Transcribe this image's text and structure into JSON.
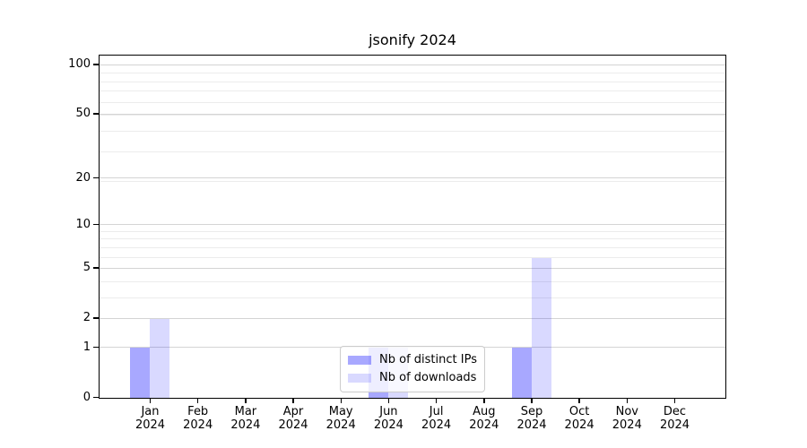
{
  "chart_data": {
    "type": "bar",
    "title": "jsonify 2024",
    "categories": [
      "Jan 2024",
      "Feb 2024",
      "Mar 2024",
      "Apr 2024",
      "May 2024",
      "Jun 2024",
      "Jul 2024",
      "Aug 2024",
      "Sep 2024",
      "Oct 2024",
      "Nov 2024",
      "Dec 2024"
    ],
    "series": [
      {
        "name": "Nb of distinct IPs",
        "color": "#0000ff57",
        "values": [
          1,
          0,
          0,
          0,
          0,
          1,
          0,
          0,
          1,
          0,
          0,
          0
        ]
      },
      {
        "name": "Nb of downloads",
        "color": "#0000ff26",
        "values": [
          2,
          0,
          0,
          0,
          0,
          1,
          0,
          0,
          6,
          0,
          0,
          0
        ]
      }
    ],
    "xlabel": "",
    "ylabel": "",
    "y_scale": "log1p",
    "y_ticks": [
      0,
      1,
      2,
      5,
      10,
      20,
      50,
      100
    ],
    "y_minor_gridlines": [
      3,
      4,
      6,
      7,
      8,
      9,
      19,
      29,
      39,
      49,
      59,
      69,
      79,
      89
    ],
    "ylim": [
      0,
      113
    ],
    "grid": true,
    "legend_position": "inside-bottom-center",
    "colors": {
      "background": "#ffffff",
      "axis": "#000000",
      "grid_major": "#d4d4d4",
      "grid_minor": "#ececec",
      "legend_border": "#cccccc"
    }
  }
}
